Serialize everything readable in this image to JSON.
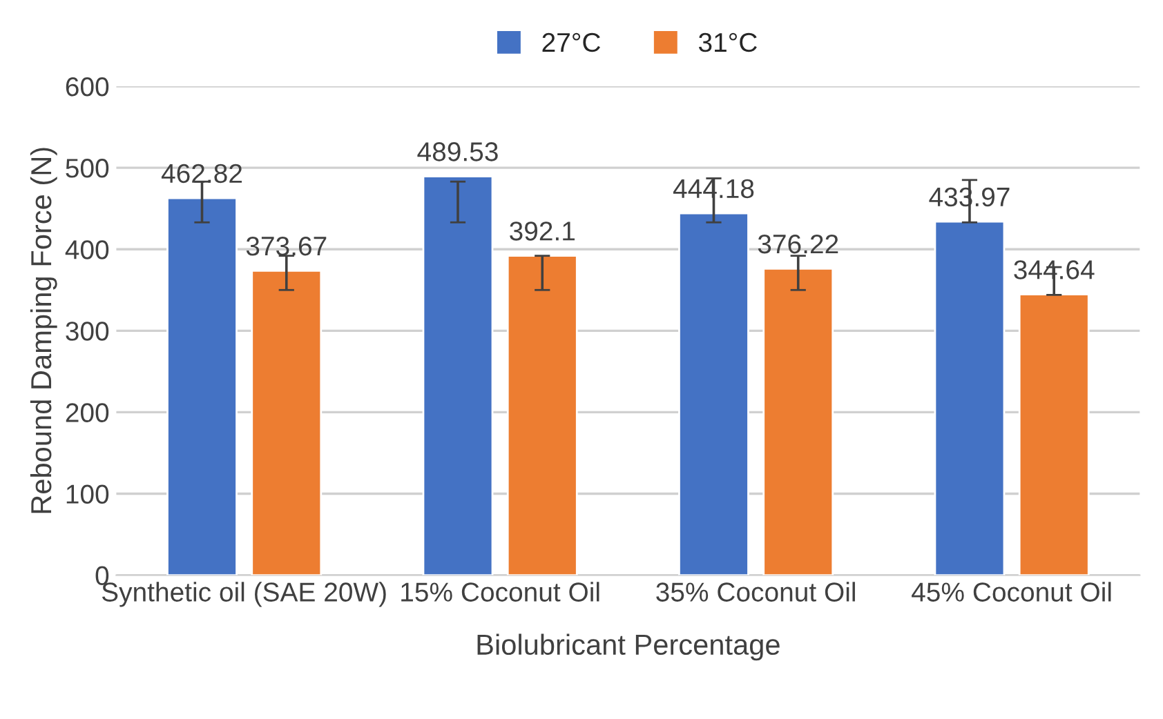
{
  "chart_data": {
    "type": "bar",
    "xlabel": "Biolubricant Percentage",
    "ylabel": "Rebound Damping Force (N)",
    "categories": [
      "Synthetic oil (SAE 20W)",
      "15% Coconut Oil",
      "35% Coconut Oil",
      "45% Coconut Oil"
    ],
    "series": [
      {
        "name": "27°C",
        "color": "#4472c4",
        "values": [
          462.82,
          489.53,
          444.18,
          433.97
        ],
        "errors": [
          [
            433,
            483
          ],
          [
            433,
            483
          ],
          [
            433,
            487
          ],
          [
            433,
            485
          ]
        ]
      },
      {
        "name": "31°C",
        "color": "#ed7d31",
        "values": [
          373.67,
          392.1,
          376.22,
          344.64
        ],
        "errors": [
          [
            350,
            392
          ],
          [
            350,
            392
          ],
          [
            350,
            392
          ],
          [
            344,
            378
          ]
        ]
      }
    ],
    "ylim": [
      0,
      600
    ],
    "yticks": [
      0,
      100,
      200,
      300,
      400,
      500,
      600
    ],
    "grid": "y",
    "legend": "top",
    "data_labels": true
  }
}
